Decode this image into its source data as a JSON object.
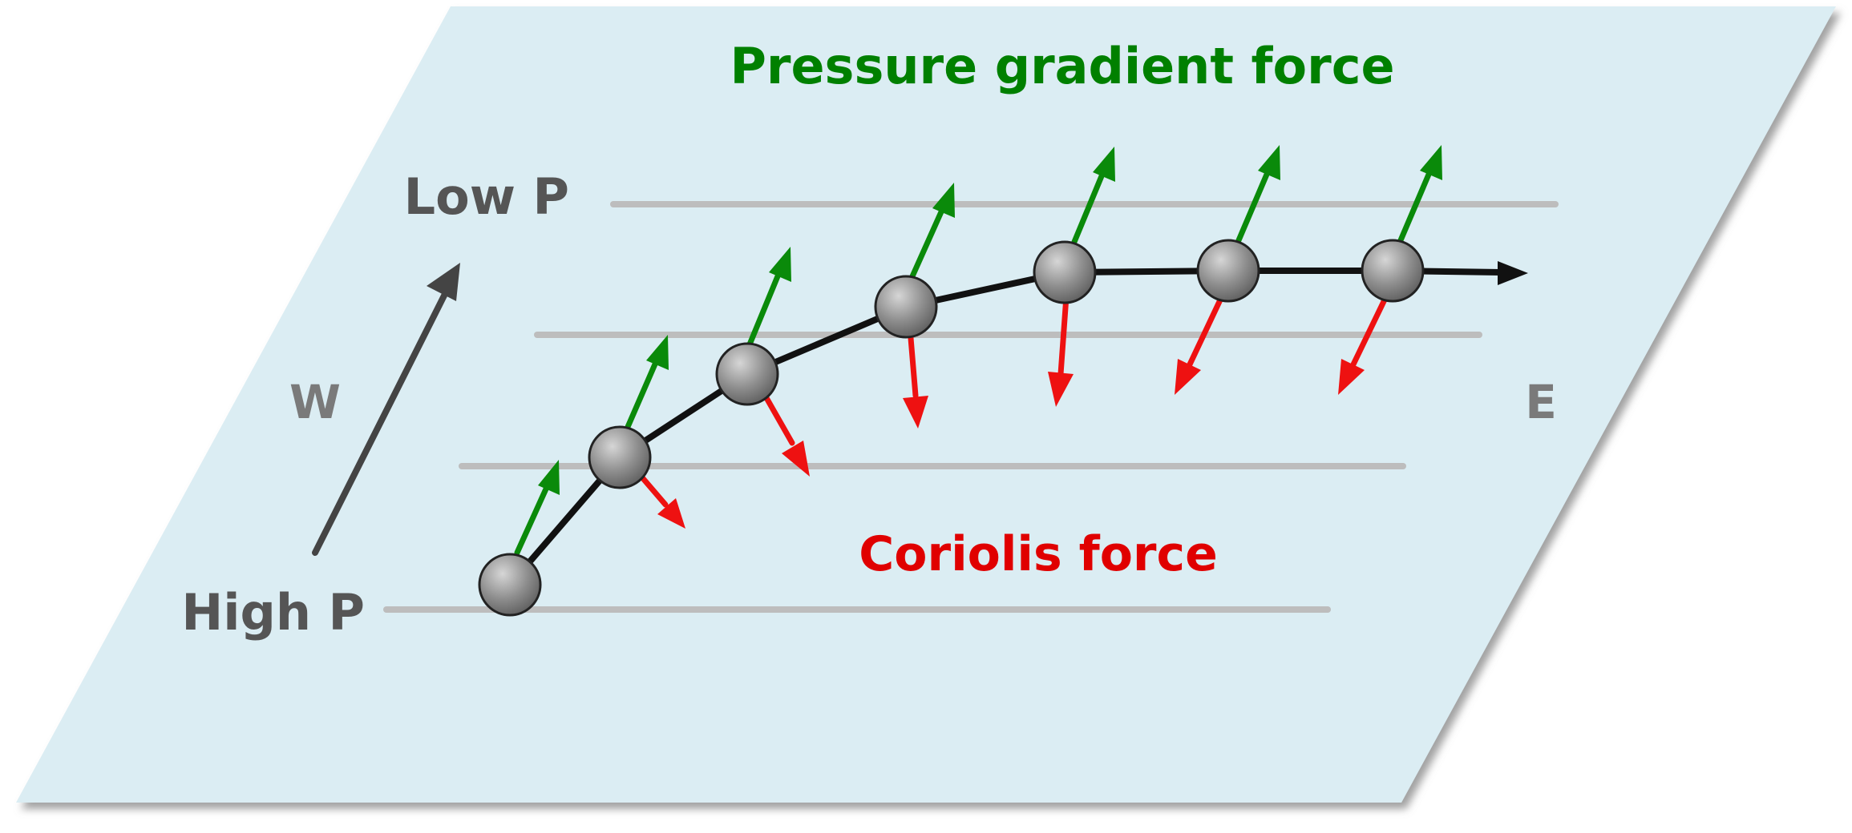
{
  "labels": {
    "pressure_gradient_force": "Pressure gradient force",
    "coriolis_force": "Coriolis force",
    "low_pressure": "Low P",
    "high_pressure": "High P",
    "west": "W",
    "east": "E"
  },
  "colors": {
    "plane_fill": "#dbedf3",
    "plane_shadow": "#9a9a9a",
    "isobar": "#bdbdbd",
    "pressure_gradient_arrow": "#0a8a0a",
    "pressure_gradient_text": "#008000",
    "coriolis_arrow": "#ee1111",
    "coriolis_text": "#e00000",
    "trajectory": "#111111",
    "parcel": "#8a8a8a",
    "direction_arrow": "#444444"
  },
  "icons": {
    "parcel": "air-parcel-sphere",
    "direction": "arrow-up-right-icon",
    "trajectory_end": "arrowhead-right-icon"
  }
}
